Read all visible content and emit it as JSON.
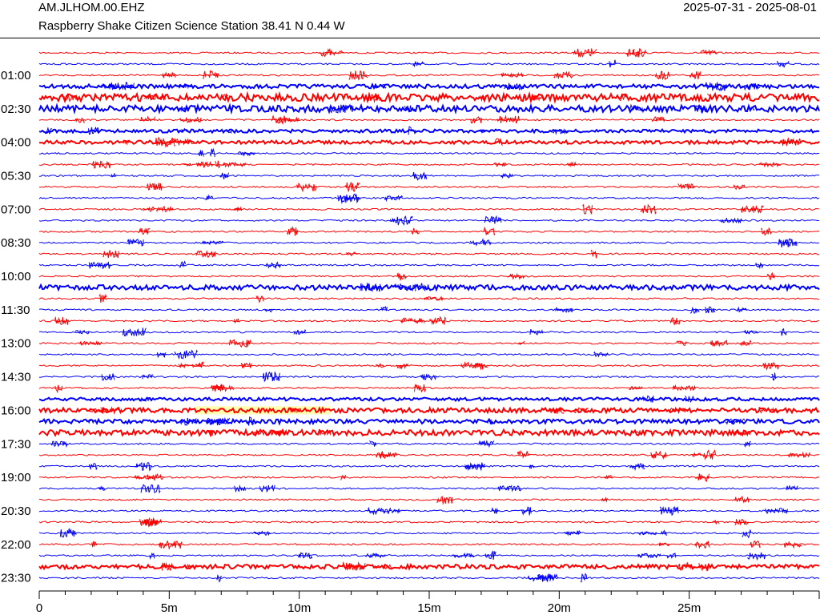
{
  "header": {
    "station": "AM.JLHOM.00.EHZ",
    "description": "Raspberry Shake Citizen Science Station  38.41 N 0.44 W",
    "date_range": "2025-07-31 - 2025-08-01"
  },
  "helicorder": {
    "trace_colors": [
      "#ff0000",
      "#0000ff"
    ],
    "highlight_color": "#ffffb0",
    "row_labels": [
      "01:00",
      "02:30",
      "04:00",
      "05:30",
      "07:00",
      "08:30",
      "10:00",
      "11:30",
      "13:00",
      "14:30",
      "16:00",
      "17:30",
      "19:00",
      "20:30",
      "22:00",
      "23:30"
    ],
    "x_axis": {
      "unit": "minutes",
      "range": [
        0,
        30
      ],
      "tick_labels": [
        "0",
        "5m",
        "10m",
        "15m",
        "20m",
        "25m"
      ]
    },
    "highlight_row_time": "16:00",
    "highlight_minutes": [
      6,
      11.2
    ]
  }
}
